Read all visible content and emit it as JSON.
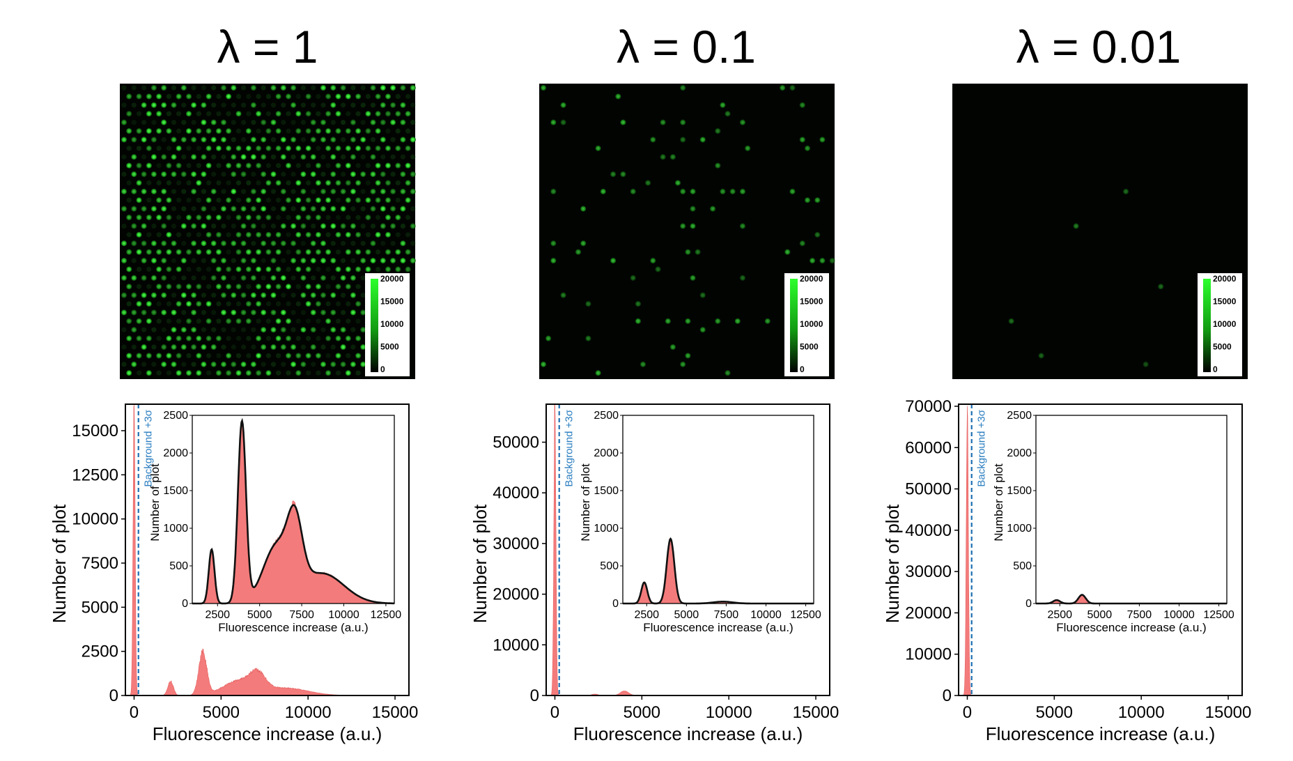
{
  "colors": {
    "histogram_fill": "#f47b7b",
    "histogram_edge": "#e56060",
    "kde_line": "#111111",
    "threshold_line": "#1f6fb0",
    "threshold_text": "#2a7ec0",
    "spot_green": "#29e629",
    "image_background": "#020402"
  },
  "chart_data": [
    {
      "type": "histogram",
      "panel_title": "λ = 1",
      "image": {
        "description_colormap": "green",
        "colorbar_ticks": [
          "20000",
          "15000",
          "10000",
          "5000",
          "0"
        ],
        "colorbar_range": [
          0,
          20000
        ],
        "spot_occupancy": 0.62,
        "spot_brightness": 0.95
      },
      "main": {
        "xlabel": "Fluorescence increase (a.u.)",
        "ylabel": "Number of plot",
        "xlim": [
          -500,
          15800
        ],
        "ylim": [
          0,
          16500
        ],
        "xticks": [
          0,
          5000,
          10000,
          15000
        ],
        "xtick_labels": [
          "0",
          "5000",
          "10000",
          "15000"
        ],
        "yticks": [
          0,
          2500,
          5000,
          7500,
          10000,
          12500,
          15000
        ],
        "ytick_labels": [
          "0",
          "2500",
          "5000",
          "7500",
          "10000",
          "12500",
          "15000"
        ],
        "threshold_x": 250,
        "threshold_label": "Background +3σ",
        "zero_peak": {
          "center": 0,
          "height": 16500,
          "sigma": 60
        },
        "peaks": [
          {
            "center": 2100,
            "height": 800,
            "sigma": 160
          },
          {
            "center": 3950,
            "height": 2450,
            "sigma": 230
          },
          {
            "center": 6000,
            "height": 800,
            "sigma": 900
          },
          {
            "center": 7100,
            "height": 870,
            "sigma": 450
          },
          {
            "center": 8700,
            "height": 420,
            "sigma": 1300
          }
        ]
      },
      "inset": {
        "xlabel": "Fluorescence increase (a.u.)",
        "ylabel": "Number of plot",
        "xlim": [
          1000,
          13000
        ],
        "ylim": [
          0,
          2500
        ],
        "xticks": [
          2500,
          5000,
          7500,
          10000,
          12500
        ],
        "xtick_labels": [
          "2500",
          "5000",
          "7500",
          "10000",
          "12500"
        ],
        "yticks": [
          0,
          500,
          1000,
          1500,
          2000,
          2500
        ],
        "ytick_labels": [
          "0",
          "500",
          "1000",
          "1500",
          "2000",
          "2500"
        ],
        "peaks": [
          {
            "center": 2150,
            "height": 720,
            "sigma": 170
          },
          {
            "center": 3950,
            "height": 2400,
            "sigma": 240
          },
          {
            "center": 6000,
            "height": 740,
            "sigma": 800
          },
          {
            "center": 7100,
            "height": 820,
            "sigma": 440
          },
          {
            "center": 8700,
            "height": 400,
            "sigma": 1300
          }
        ]
      }
    },
    {
      "type": "histogram",
      "panel_title": "λ = 0.1",
      "image": {
        "description_colormap": "green",
        "colorbar_ticks": [
          "20000",
          "15000",
          "10000",
          "5000",
          "0"
        ],
        "colorbar_range": [
          0,
          20000
        ],
        "spot_occupancy": 0.1,
        "spot_brightness": 0.7
      },
      "main": {
        "xlabel": "Fluorescence increase (a.u.)",
        "ylabel": "Number of plot",
        "xlim": [
          -500,
          15800
        ],
        "ylim": [
          0,
          57500
        ],
        "xticks": [
          0,
          5000,
          10000,
          15000
        ],
        "xtick_labels": [
          "0",
          "5000",
          "10000",
          "15000"
        ],
        "yticks": [
          0,
          10000,
          20000,
          30000,
          40000,
          50000
        ],
        "ytick_labels": [
          "0",
          "10000",
          "20000",
          "30000",
          "40000",
          "50000"
        ],
        "threshold_x": 250,
        "threshold_label": "Background +3σ",
        "zero_peak": {
          "center": 0,
          "height": 57500,
          "sigma": 60
        },
        "peaks": [
          {
            "center": 2300,
            "height": 280,
            "sigma": 180
          },
          {
            "center": 4000,
            "height": 900,
            "sigma": 240
          },
          {
            "center": 7200,
            "height": 30,
            "sigma": 500
          }
        ]
      },
      "inset": {
        "xlabel": "Fluorescence increase (a.u.)",
        "ylabel": "Number of plot",
        "xlim": [
          1000,
          13000
        ],
        "ylim": [
          0,
          2500
        ],
        "xticks": [
          2500,
          5000,
          7500,
          10000,
          12500
        ],
        "xtick_labels": [
          "2500",
          "5000",
          "7500",
          "10000",
          "12500"
        ],
        "yticks": [
          0,
          500,
          1000,
          1500,
          2000,
          2500
        ],
        "ytick_labels": [
          "0",
          "500",
          "1000",
          "1500",
          "2000",
          "2500"
        ],
        "peaks": [
          {
            "center": 2350,
            "height": 280,
            "sigma": 190
          },
          {
            "center": 4000,
            "height": 860,
            "sigma": 240
          },
          {
            "center": 7300,
            "height": 25,
            "sigma": 600
          }
        ]
      }
    },
    {
      "type": "histogram",
      "panel_title": "λ = 0.01",
      "image": {
        "description_colormap": "green",
        "colorbar_ticks": [
          "20000",
          "15000",
          "10000",
          "5000",
          "0"
        ],
        "colorbar_range": [
          0,
          20000
        ],
        "spot_occupancy": 0.012,
        "spot_brightness": 0.5
      },
      "main": {
        "xlabel": "Fluorescence increase (a.u.)",
        "ylabel": "Number of plot",
        "xlim": [
          -500,
          15800
        ],
        "ylim": [
          0,
          70500
        ],
        "xticks": [
          0,
          5000,
          10000,
          15000
        ],
        "xtick_labels": [
          "0",
          "5000",
          "10000",
          "15000"
        ],
        "yticks": [
          0,
          10000,
          20000,
          30000,
          40000,
          50000,
          60000,
          70000
        ],
        "ytick_labels": [
          "0",
          "10000",
          "20000",
          "30000",
          "40000",
          "50000",
          "60000",
          "70000"
        ],
        "threshold_x": 250,
        "threshold_label": "Background +3σ",
        "zero_peak": {
          "center": 0,
          "height": 70500,
          "sigma": 60
        },
        "peaks": [
          {
            "center": 2300,
            "height": 30,
            "sigma": 200
          },
          {
            "center": 3900,
            "height": 110,
            "sigma": 230
          }
        ]
      },
      "inset": {
        "xlabel": "Fluorescence increase (a.u.)",
        "ylabel": "Number of plot",
        "xlim": [
          1000,
          13000
        ],
        "ylim": [
          0,
          2500
        ],
        "xticks": [
          2500,
          5000,
          7500,
          10000,
          12500
        ],
        "xtick_labels": [
          "2500",
          "5000",
          "7500",
          "10000",
          "12500"
        ],
        "yticks": [
          0,
          500,
          1000,
          1500,
          2000,
          2500
        ],
        "ytick_labels": [
          "0",
          "500",
          "1000",
          "1500",
          "2000",
          "2500"
        ],
        "peaks": [
          {
            "center": 2300,
            "height": 45,
            "sigma": 220
          },
          {
            "center": 3900,
            "height": 115,
            "sigma": 230
          }
        ]
      }
    }
  ]
}
